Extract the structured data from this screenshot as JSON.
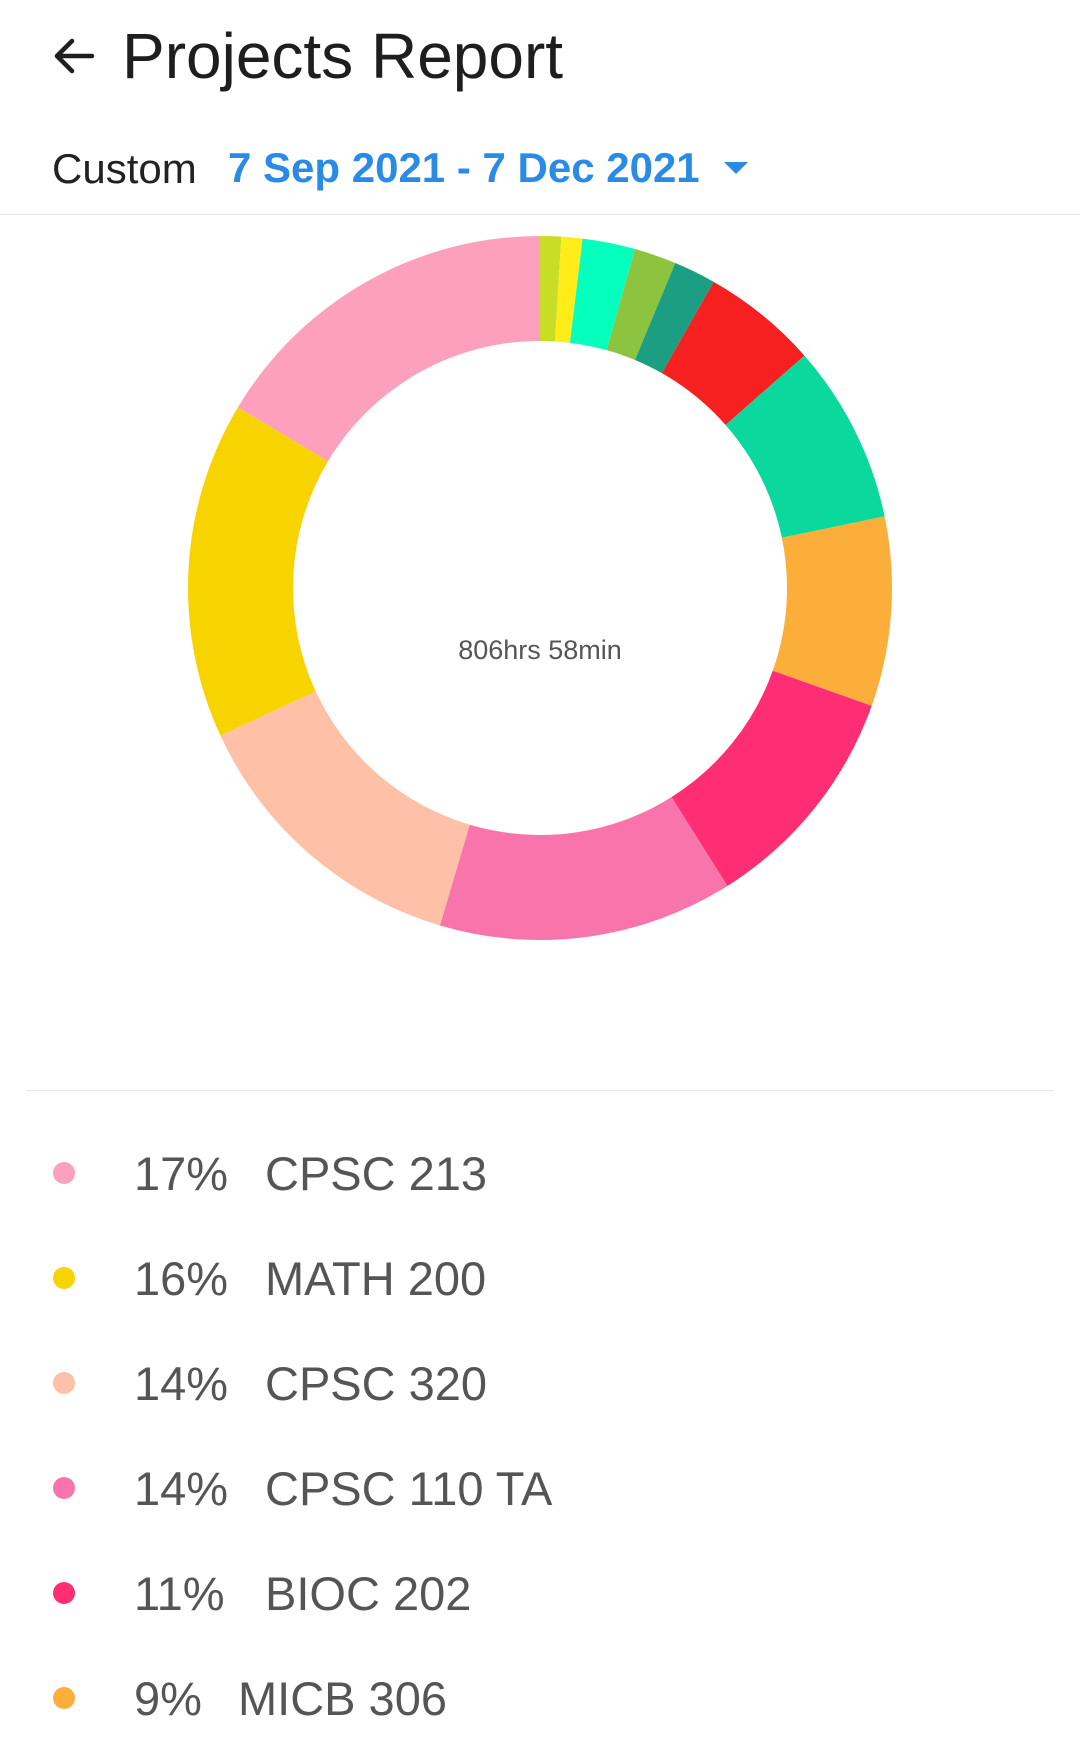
{
  "header": {
    "title": "Projects Report"
  },
  "range": {
    "label": "Custom",
    "value": "7 Sep 2021 - 7 Dec 2021"
  },
  "chart_data": {
    "type": "pie",
    "center_label": "806hrs 58min",
    "series": [
      {
        "name": "CPSC 213",
        "value": 17,
        "color": "#fda0bd"
      },
      {
        "name": "MATH 200",
        "value": 16,
        "color": "#f7d400"
      },
      {
        "name": "CPSC 320",
        "value": 14,
        "color": "#fec0a6"
      },
      {
        "name": "CPSC 110 TA",
        "value": 14,
        "color": "#fa74ac"
      },
      {
        "name": "BIOC 202",
        "value": 11,
        "color": "#ff2e74"
      },
      {
        "name": "MICB 306",
        "value": 9,
        "color": "#fbae3a"
      }
    ],
    "unlabeled_segments": [
      {
        "value": 8.5,
        "color": "#0bd89c"
      },
      {
        "value": 5.5,
        "color": "#f5201f"
      },
      {
        "value": 2,
        "color": "#1c9e82"
      },
      {
        "value": 2,
        "color": "#8cc43f"
      },
      {
        "value": 2.5,
        "color": "#05ffbc"
      },
      {
        "value": 1,
        "color": "#ffec18"
      },
      {
        "value": 1,
        "color": "#c8dd25"
      }
    ]
  },
  "legend": [
    {
      "pct": "17%",
      "name": "CPSC 213",
      "color": "#fda0bd"
    },
    {
      "pct": "16%",
      "name": "MATH 200",
      "color": "#f7d400"
    },
    {
      "pct": "14%",
      "name": "CPSC 320",
      "color": "#fec0a6"
    },
    {
      "pct": "14%",
      "name": "CPSC 110 TA",
      "color": "#fa74ac"
    },
    {
      "pct": "11%",
      "name": "BIOC 202",
      "color": "#ff2e74"
    },
    {
      "pct": "9%",
      "name": "MICB 306",
      "color": "#fbae3a"
    }
  ]
}
